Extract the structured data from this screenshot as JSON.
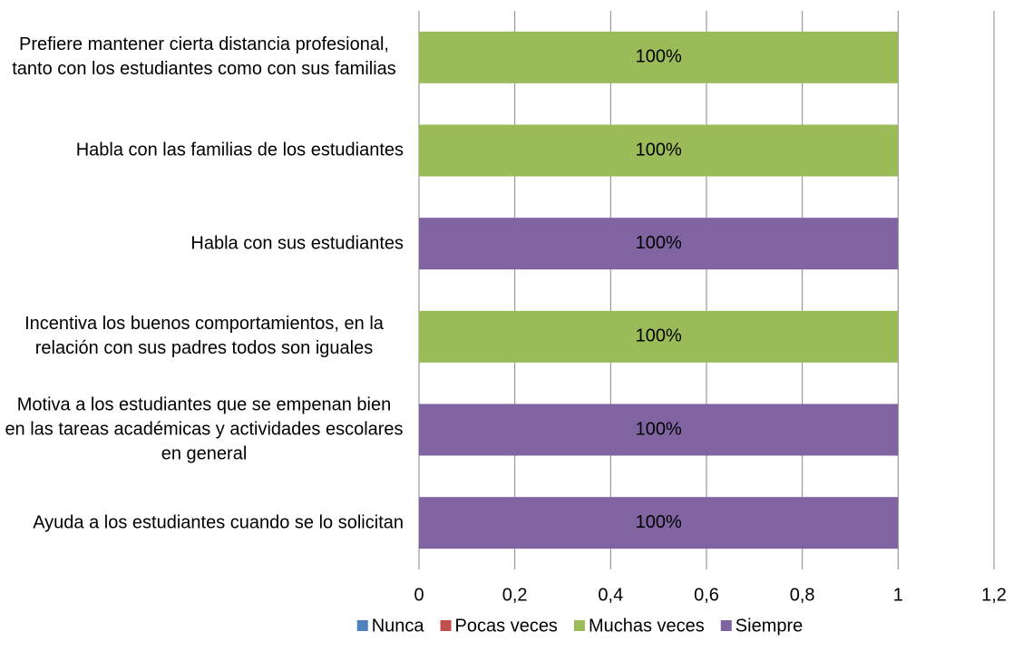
{
  "chart_data": {
    "type": "stacked_barh",
    "categories": [
      "Prefiere mantener cierta distancia profesional, tanto con los estudiantes como con sus familias",
      "Habla con las familias de los estudiantes",
      "Habla con sus estudiantes",
      "Incentiva los buenos comportamientos, en la relación con sus padres todos son iguales",
      "Motiva a los estudiantes que se empenan bien en las tareas académicas y actividades escolares en general",
      "Ayuda a los estudiantes cuando se lo solicitan"
    ],
    "series": [
      {
        "name": "Nunca",
        "color": "#4f81bd",
        "values": [
          0,
          0,
          0,
          0,
          0,
          0
        ],
        "value_labels": [
          null,
          null,
          null,
          null,
          null,
          null
        ]
      },
      {
        "name": "Pocas veces",
        "color": "#c0504d",
        "values": [
          0,
          0,
          0,
          0,
          0,
          0
        ],
        "value_labels": [
          null,
          null,
          null,
          null,
          null,
          null
        ]
      },
      {
        "name": "Muchas veces",
        "color": "#9bbb59",
        "values": [
          1,
          1,
          0,
          1,
          0,
          0
        ],
        "value_labels": [
          "100%",
          "100%",
          null,
          "100%",
          null,
          null
        ]
      },
      {
        "name": "Siempre",
        "color": "#8064a2",
        "values": [
          0,
          0,
          1,
          0,
          1,
          1
        ],
        "value_labels": [
          null,
          null,
          "100%",
          null,
          "100%",
          "100%"
        ]
      }
    ],
    "xlim": [
      0,
      1.2
    ],
    "xticks": [
      0,
      {
        "value": 0.2,
        "label": "0,2"
      },
      {
        "value": 0.4,
        "label": "0,4"
      },
      {
        "value": 0.6,
        "label": "0,6"
      },
      {
        "value": 0.8,
        "label": "0,8"
      },
      1,
      {
        "value": 1.2,
        "label": "1,2"
      }
    ],
    "grid": true,
    "legend": "bottom"
  }
}
